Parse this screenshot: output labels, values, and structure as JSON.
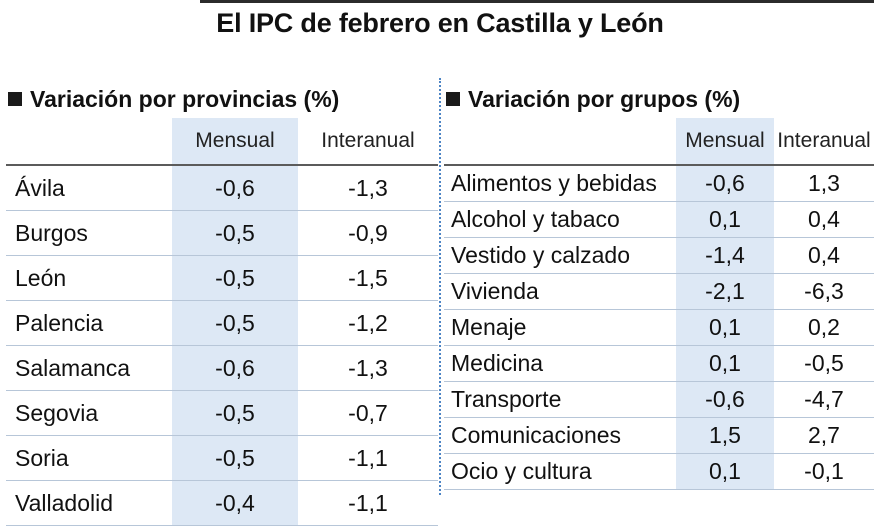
{
  "title": "El IPC de febrero en Castilla y León",
  "provinces": {
    "heading": "Variación por provincias (%)",
    "col_mensual": "Mensual",
    "col_interanual": "Interanual",
    "rows": [
      {
        "name": "Ávila",
        "mensual": "-0,6",
        "interanual": "-1,3"
      },
      {
        "name": "Burgos",
        "mensual": "-0,5",
        "interanual": "-0,9"
      },
      {
        "name": "León",
        "mensual": "-0,5",
        "interanual": "-1,5"
      },
      {
        "name": "Palencia",
        "mensual": "-0,5",
        "interanual": "-1,2"
      },
      {
        "name": "Salamanca",
        "mensual": "-0,6",
        "interanual": "-1,3"
      },
      {
        "name": "Segovia",
        "mensual": "-0,5",
        "interanual": "-0,7"
      },
      {
        "name": "Soria",
        "mensual": "-0,5",
        "interanual": "-1,1"
      },
      {
        "name": "Valladolid",
        "mensual": "-0,4",
        "interanual": "-1,1"
      }
    ]
  },
  "groups": {
    "heading": "Variación por grupos (%)",
    "col_mensual": "Mensual",
    "col_interanual": "Interanual",
    "rows": [
      {
        "name": "Alimentos y bebidas",
        "mensual": "-0,6",
        "interanual": "1,3"
      },
      {
        "name": "Alcohol y tabaco",
        "mensual": "0,1",
        "interanual": "0,4"
      },
      {
        "name": "Vestido y calzado",
        "mensual": "-1,4",
        "interanual": "0,4"
      },
      {
        "name": "Vivienda",
        "mensual": "-2,1",
        "interanual": "-6,3"
      },
      {
        "name": "Menaje",
        "mensual": "0,1",
        "interanual": "0,2"
      },
      {
        "name": "Medicina",
        "mensual": "0,1",
        "interanual": "-0,5"
      },
      {
        "name": "Transporte",
        "mensual": "-0,6",
        "interanual": "-4,7"
      },
      {
        "name": "Comunicaciones",
        "mensual": "1,5",
        "interanual": "2,7"
      },
      {
        "name": "Ocio y cultura",
        "mensual": "0,1",
        "interanual": "-0,1"
      }
    ]
  }
}
